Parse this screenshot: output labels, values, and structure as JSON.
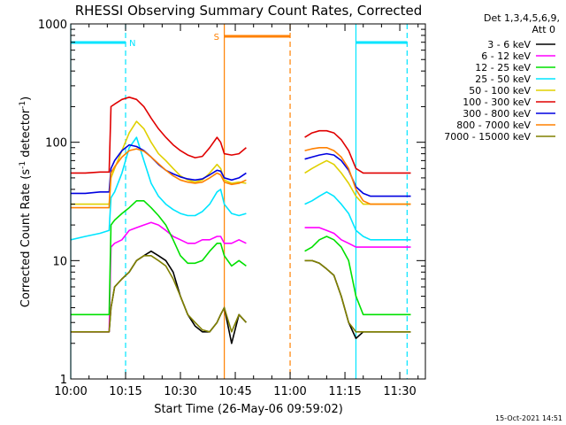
{
  "chart_data": {
    "type": "line",
    "title": "RHESSI Observing Summary Count Rates, Corrected",
    "xlabel": "Start Time (26-May-06 09:59:02)",
    "ylabel_main": "Corrected Count Rate (s",
    "ylabel_sup1": "-1",
    "ylabel_mid": " detector",
    "ylabel_sup2": "-1",
    "ylabel_end": ")",
    "yscale": "log",
    "ylim": [
      1,
      1000
    ],
    "xlim_minutes": [
      0,
      97
    ],
    "x_tick_labels": [
      "10:00",
      "10:15",
      "10:30",
      "10:45",
      "11:00",
      "11:15",
      "11:30"
    ],
    "x_tick_minutes": [
      0,
      15,
      30,
      45,
      60,
      75,
      90
    ],
    "y_tick_labels": [
      "1",
      "10",
      "100",
      "1000"
    ],
    "y_tick_values": [
      1,
      10,
      100,
      1000
    ],
    "legend": {
      "placement": "right-outside",
      "header_line1": "Det 1,3,4,5,6,9,",
      "header_line2": "Att 0",
      "entries": [
        {
          "label": "3 - 6 keV",
          "color": "#000000"
        },
        {
          "label": "6 - 12 keV",
          "color": "#ff00ff"
        },
        {
          "label": "12 - 25 keV",
          "color": "#00e000"
        },
        {
          "label": "25 - 50 keV",
          "color": "#00e5ff"
        },
        {
          "label": "50 - 100 keV",
          "color": "#e0d000"
        },
        {
          "label": "100 - 300 keV",
          "color": "#e00000"
        },
        {
          "label": "300 - 800 keV",
          "color": "#0000e0"
        },
        {
          "label": "800 - 7000 keV",
          "color": "#ff8000"
        },
        {
          "label": "7000 - 15000 keV",
          "color": "#808000"
        }
      ]
    },
    "intervals": [
      {
        "label": "N",
        "color": "#00e5ff",
        "x_minutes": [
          0,
          15
        ]
      },
      {
        "label": "",
        "color": "#00e5ff",
        "x_minutes": [
          78,
          92
        ]
      },
      {
        "label": "S",
        "color": "#ff8000",
        "x_minutes": [
          42,
          60
        ]
      }
    ],
    "boundary_lines": [
      {
        "x_minutes": 0,
        "color": "#00e5ff",
        "style": "solid"
      },
      {
        "x_minutes": 15,
        "color": "#00e5ff",
        "style": "dashed"
      },
      {
        "x_minutes": 42,
        "color": "#ff8000",
        "style": "solid"
      },
      {
        "x_minutes": 60,
        "color": "#ff8000",
        "style": "dashed"
      },
      {
        "x_minutes": 78,
        "color": "#00e5ff",
        "style": "solid"
      },
      {
        "x_minutes": 92,
        "color": "#00e5ff",
        "style": "dashed"
      }
    ],
    "series_x_minutes": [
      0,
      4,
      8,
      10.5,
      11,
      12,
      14,
      16,
      18,
      20,
      22,
      24,
      26,
      28,
      30,
      32,
      34,
      36,
      38,
      40,
      41,
      42,
      44,
      46,
      48,
      62,
      64,
      66,
      68,
      70,
      72,
      74,
      76,
      78,
      80,
      82,
      84,
      86,
      88,
      90,
      92,
      93
    ],
    "series": [
      {
        "name": "3 - 6 keV",
        "color": "#000000",
        "values": [
          2.5,
          2.5,
          2.5,
          2.5,
          4,
          6,
          7,
          8,
          10,
          11,
          12,
          11,
          10,
          8,
          5,
          3.5,
          2.8,
          2.5,
          2.5,
          3,
          3.5,
          4,
          2,
          3.5,
          3,
          null,
          10,
          10,
          9.5,
          8.5,
          7.5,
          5,
          3,
          2.2,
          2.5,
          2.5,
          2.5,
          2.5,
          2.5,
          2.5,
          2.5,
          2.5
        ]
      },
      {
        "name": "6 - 12 keV",
        "color": "#ff00ff",
        "values": [
          2.5,
          2.5,
          2.5,
          2.5,
          13,
          14,
          15,
          18,
          19,
          20,
          21,
          20,
          18,
          16,
          15,
          14,
          14,
          15,
          15,
          16,
          16,
          14,
          14,
          15,
          14,
          null,
          19,
          19,
          19,
          18,
          17,
          15,
          14,
          13,
          13,
          13,
          13,
          13,
          13,
          13,
          13,
          13
        ]
      },
      {
        "name": "12 - 25 keV",
        "color": "#00e000",
        "values": [
          3.5,
          3.5,
          3.5,
          3.5,
          20,
          22,
          25,
          28,
          32,
          32,
          28,
          24,
          20,
          15,
          11,
          9.5,
          9.5,
          10,
          12,
          14,
          14,
          11,
          9,
          10,
          9,
          null,
          12,
          13,
          15,
          16,
          15,
          13,
          10,
          5,
          3.5,
          3.5,
          3.5,
          3.5,
          3.5,
          3.5,
          3.5,
          3.5
        ]
      },
      {
        "name": "25 - 50 keV",
        "color": "#00e5ff",
        "values": [
          15,
          16,
          17,
          18,
          34,
          38,
          55,
          90,
          110,
          70,
          45,
          35,
          30,
          27,
          25,
          24,
          24,
          26,
          30,
          38,
          40,
          30,
          25,
          24,
          25,
          null,
          30,
          32,
          35,
          38,
          35,
          30,
          25,
          18,
          16,
          15,
          15,
          15,
          15,
          15,
          15,
          15
        ]
      },
      {
        "name": "50 - 100 keV",
        "color": "#e0d000",
        "values": [
          30,
          30,
          30,
          30,
          50,
          60,
          85,
          120,
          150,
          130,
          100,
          80,
          70,
          60,
          52,
          48,
          46,
          48,
          55,
          65,
          60,
          48,
          45,
          46,
          45,
          null,
          55,
          60,
          65,
          70,
          65,
          55,
          45,
          35,
          30,
          30,
          30,
          30,
          30,
          30,
          30,
          30
        ]
      },
      {
        "name": "100 - 300 keV",
        "color": "#e00000",
        "values": [
          55,
          55,
          56,
          56,
          200,
          210,
          230,
          240,
          230,
          200,
          160,
          130,
          110,
          95,
          85,
          78,
          74,
          76,
          90,
          110,
          100,
          80,
          78,
          80,
          90,
          null,
          110,
          120,
          125,
          125,
          120,
          105,
          85,
          60,
          55,
          55,
          55,
          55,
          55,
          55,
          55,
          55
        ]
      },
      {
        "name": "300 - 800 keV",
        "color": "#0000e0",
        "values": [
          37,
          37,
          38,
          38,
          60,
          70,
          85,
          95,
          92,
          85,
          75,
          65,
          58,
          54,
          51,
          49,
          48,
          49,
          53,
          58,
          57,
          50,
          48,
          50,
          55,
          null,
          72,
          75,
          78,
          80,
          78,
          70,
          58,
          42,
          37,
          35,
          35,
          35,
          35,
          35,
          35,
          35
        ]
      },
      {
        "name": "800 - 7000 keV",
        "color": "#ff8000",
        "values": [
          28,
          28,
          28,
          28,
          55,
          62,
          75,
          85,
          88,
          84,
          75,
          66,
          58,
          52,
          48,
          46,
          45,
          46,
          50,
          55,
          53,
          46,
          44,
          45,
          48,
          null,
          85,
          88,
          90,
          90,
          85,
          75,
          60,
          40,
          32,
          30,
          30,
          30,
          30,
          30,
          30,
          30
        ]
      },
      {
        "name": "7000 - 15000 keV",
        "color": "#808000",
        "values": [
          2.5,
          2.5,
          2.5,
          2.5,
          4,
          6,
          7,
          8,
          10,
          11,
          11,
          10,
          9,
          7,
          5,
          3.5,
          3,
          2.6,
          2.5,
          3,
          3.5,
          4,
          2.5,
          3.5,
          3,
          null,
          10,
          10,
          9.5,
          8.5,
          7.5,
          5,
          3,
          2.5,
          2.5,
          2.5,
          2.5,
          2.5,
          2.5,
          2.5,
          2.5,
          2.5
        ]
      }
    ],
    "footer_date": "15-Oct-2021 14:51"
  }
}
